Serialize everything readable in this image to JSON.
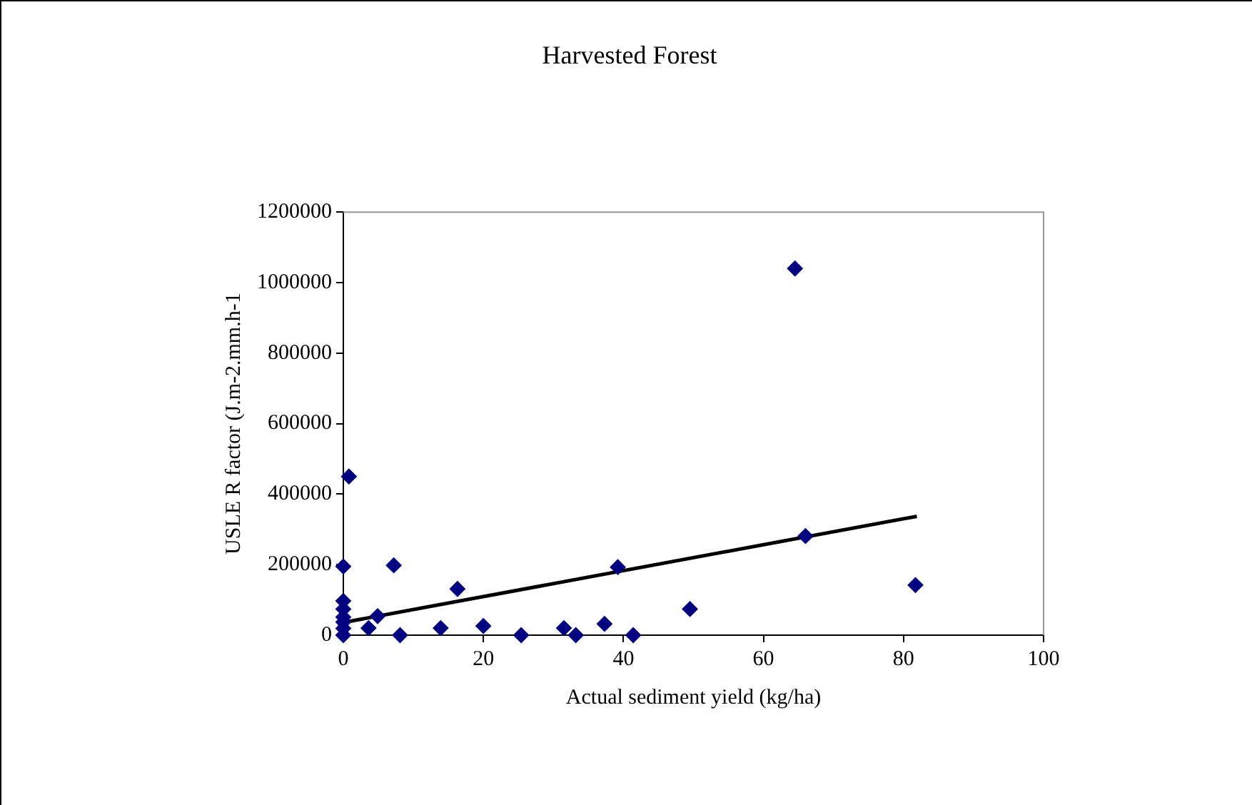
{
  "chart_data": {
    "type": "scatter",
    "title": "Harvested Forest",
    "xlabel": "Actual sediment yield (kg/ha)",
    "ylabel": "USLE R factor (J.m-2.mm.h-1",
    "xlim": [
      0,
      100
    ],
    "xticks": [
      0,
      20,
      40,
      60,
      80,
      100
    ],
    "ylim": [
      0,
      1200000
    ],
    "yticks": [
      0,
      200000,
      400000,
      600000,
      800000,
      1000000,
      1200000
    ],
    "grid": false,
    "legend": false,
    "marker": "diamond",
    "series": [
      {
        "color": "#000080",
        "x": [
          0,
          0,
          0,
          0,
          0,
          0,
          0,
          0.8,
          3.6,
          4.9,
          7.2,
          8.1,
          13.9,
          16.3,
          20,
          25.4,
          31.5,
          33.2,
          37.3,
          39.2,
          41.4,
          49.5,
          64.5,
          66,
          81.7
        ],
        "values": [
          0,
          19000,
          37000,
          51000,
          74000,
          97000,
          195000,
          450000,
          20000,
          54000,
          198000,
          0,
          20000,
          131000,
          26000,
          0,
          20000,
          0,
          32000,
          193000,
          0,
          74000,
          1040000,
          281000,
          142000
        ]
      },
      {
        "type": "line",
        "color": "#000000",
        "x": [
          0,
          81.9
        ],
        "values": [
          36000,
          337000
        ],
        "marker": "none",
        "line_style": "solid"
      }
    ]
  }
}
